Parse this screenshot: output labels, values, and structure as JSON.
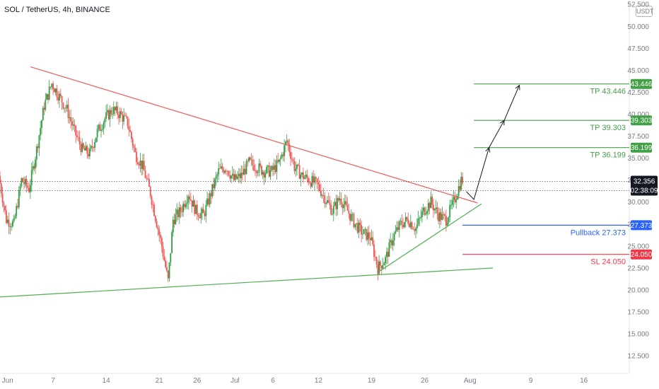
{
  "header": {
    "symbol": "SOL / TetherUS, 4h, BINANCE",
    "currency": "USDT"
  },
  "colors": {
    "up": "#26a69a",
    "up_green": "#2f9e44",
    "down": "#ef5350",
    "trend_red": "#f05a5a",
    "trend_green": "#4caf50",
    "pullback": "#2962ff",
    "sl": "#f23645",
    "tp": "#43a047"
  },
  "chart_data": {
    "type": "candlestick",
    "x_ticks": [
      "Jun",
      "7",
      "14",
      "21",
      "26",
      "Jul",
      "6",
      "12",
      "19",
      "26",
      "Aug",
      "9",
      "16"
    ],
    "x_tick_dates": [
      "2021-06-01",
      "2021-06-07",
      "2021-06-14",
      "2021-06-21",
      "2021-06-26",
      "2021-07-01",
      "2021-07-06",
      "2021-07-12",
      "2021-07-19",
      "2021-07-26",
      "2021-08-01",
      "2021-08-09",
      "2021-08-16"
    ],
    "y_ticks": [
      52.5,
      50.0,
      47.5,
      45.0,
      42.5,
      40.0,
      37.5,
      35.0,
      32.5,
      30.0,
      27.5,
      25.0,
      22.5,
      20.0,
      17.5,
      15.0,
      12.5
    ],
    "y_tick_labels": [
      "52.500",
      "50.000",
      "47.500",
      "45.000",
      "42.500",
      "40.000",
      "37.500",
      "35.000",
      "32.500",
      "30.000",
      "27.500",
      "25.000",
      "22.500",
      "20.000",
      "17.500",
      "15.000",
      "12.500"
    ],
    "ylim": [
      10.5,
      53.0
    ],
    "xlim": [
      "2021-05-31",
      "2021-08-22"
    ],
    "price_path": [
      [
        "2021-05-31T00:00",
        33.0
      ],
      [
        "2021-06-01T00:00",
        28.0
      ],
      [
        "2021-06-02T00:00",
        27.5
      ],
      [
        "2021-06-03T00:00",
        32.5
      ],
      [
        "2021-06-04T00:00",
        31.5
      ],
      [
        "2021-06-05T00:00",
        36.0
      ],
      [
        "2021-06-06T00:00",
        41.0
      ],
      [
        "2021-06-07T00:00",
        43.5
      ],
      [
        "2021-06-08T00:00",
        42.0
      ],
      [
        "2021-06-09T00:00",
        40.5
      ],
      [
        "2021-06-10T00:00",
        38.0
      ],
      [
        "2021-06-11T00:00",
        36.0
      ],
      [
        "2021-06-12T00:00",
        35.5
      ],
      [
        "2021-06-13T00:00",
        38.0
      ],
      [
        "2021-06-14T00:00",
        39.5
      ],
      [
        "2021-06-15T00:00",
        40.5
      ],
      [
        "2021-06-16T00:00",
        40.0
      ],
      [
        "2021-06-17T00:00",
        39.0
      ],
      [
        "2021-06-18T00:00",
        35.5
      ],
      [
        "2021-06-19T00:00",
        34.0
      ],
      [
        "2021-06-20T00:00",
        31.0
      ],
      [
        "2021-06-21T12:00",
        25.0
      ],
      [
        "2021-06-22T08:00",
        21.0
      ],
      [
        "2021-06-23T00:00",
        28.0
      ],
      [
        "2021-06-24T00:00",
        29.0
      ],
      [
        "2021-06-25T00:00",
        31.0
      ],
      [
        "2021-06-26T00:00",
        29.0
      ],
      [
        "2021-06-27T00:00",
        28.5
      ],
      [
        "2021-06-28T00:00",
        31.0
      ],
      [
        "2021-06-29T00:00",
        33.5
      ],
      [
        "2021-06-30T00:00",
        34.0
      ],
      [
        "2021-07-01T00:00",
        32.5
      ],
      [
        "2021-07-02T00:00",
        33.0
      ],
      [
        "2021-07-03T00:00",
        34.5
      ],
      [
        "2021-07-04T00:00",
        34.0
      ],
      [
        "2021-07-05T00:00",
        33.5
      ],
      [
        "2021-07-06T00:00",
        33.5
      ],
      [
        "2021-07-07T00:00",
        34.5
      ],
      [
        "2021-07-08T00:00",
        37.0
      ],
      [
        "2021-07-09T00:00",
        34.0
      ],
      [
        "2021-07-10T00:00",
        33.0
      ],
      [
        "2021-07-11T00:00",
        32.5
      ],
      [
        "2021-07-12T00:00",
        32.0
      ],
      [
        "2021-07-13T00:00",
        30.5
      ],
      [
        "2021-07-14T00:00",
        29.0
      ],
      [
        "2021-07-15T00:00",
        30.5
      ],
      [
        "2021-07-16T00:00",
        29.0
      ],
      [
        "2021-07-17T00:00",
        27.5
      ],
      [
        "2021-07-18T00:00",
        26.5
      ],
      [
        "2021-07-19T00:00",
        26.0
      ],
      [
        "2021-07-20T00:00",
        22.5
      ],
      [
        "2021-07-21T00:00",
        23.5
      ],
      [
        "2021-07-22T00:00",
        26.0
      ],
      [
        "2021-07-23T00:00",
        27.5
      ],
      [
        "2021-07-24T00:00",
        28.0
      ],
      [
        "2021-07-25T00:00",
        27.0
      ],
      [
        "2021-07-26T00:00",
        29.0
      ],
      [
        "2021-07-27T00:00",
        30.0
      ],
      [
        "2021-07-28T00:00",
        28.5
      ],
      [
        "2021-07-29T00:00",
        28.0
      ],
      [
        "2021-07-30T00:00",
        30.0
      ],
      [
        "2021-07-31T00:00",
        32.5
      ]
    ],
    "trendlines": [
      {
        "name": "descending-resistance",
        "color": "#f05a5a",
        "points": [
          [
            "2021-06-04T00:00",
            45.4
          ],
          [
            "2021-08-02T00:00",
            29.9
          ]
        ]
      },
      {
        "name": "long-support",
        "color": "#4caf50",
        "points": [
          [
            "2021-05-31T00:00",
            19.2
          ],
          [
            "2021-08-04T00:00",
            22.5
          ]
        ]
      },
      {
        "name": "rising-support",
        "color": "#4caf50",
        "points": [
          [
            "2021-07-20T00:00",
            22.1
          ],
          [
            "2021-08-02T12:00",
            29.8
          ]
        ]
      }
    ],
    "projection": [
      [
        "2021-07-31T12:00",
        31.2
      ],
      [
        "2021-08-01T12:00",
        30.3
      ],
      [
        "2021-08-03T12:00",
        36.2
      ],
      [
        "2021-08-05T12:00",
        39.3
      ],
      [
        "2021-08-07T12:00",
        43.3
      ]
    ],
    "current_price": {
      "value": 32.356,
      "label": "32.356",
      "countdown": "02:38:09",
      "color": "#131722"
    },
    "levels": [
      {
        "name": "tp3",
        "value": 43.446,
        "label": "TP 43.446",
        "tag": "43.446",
        "color": "#43a047",
        "start": "2021-08-01T12:00"
      },
      {
        "name": "tp2",
        "value": 39.303,
        "label": "TP 39.303",
        "tag": "39.303",
        "color": "#43a047",
        "start": "2021-08-01T12:00"
      },
      {
        "name": "tp1",
        "value": 36.199,
        "label": "TP 36.199",
        "tag": "36.199",
        "color": "#43a047",
        "start": "2021-08-01T12:00"
      },
      {
        "name": "pullback",
        "value": 27.373,
        "label": "Pullback 27.373",
        "tag": "27.373",
        "color": "#2962ff",
        "start": "2021-07-31T00:00"
      },
      {
        "name": "sl",
        "value": 24.05,
        "label": "SL 24.050",
        "tag": "24.050",
        "color": "#f23645",
        "start": "2021-07-31T00:00"
      }
    ],
    "dotted_levels": [
      32.356,
      31.3
    ]
  }
}
